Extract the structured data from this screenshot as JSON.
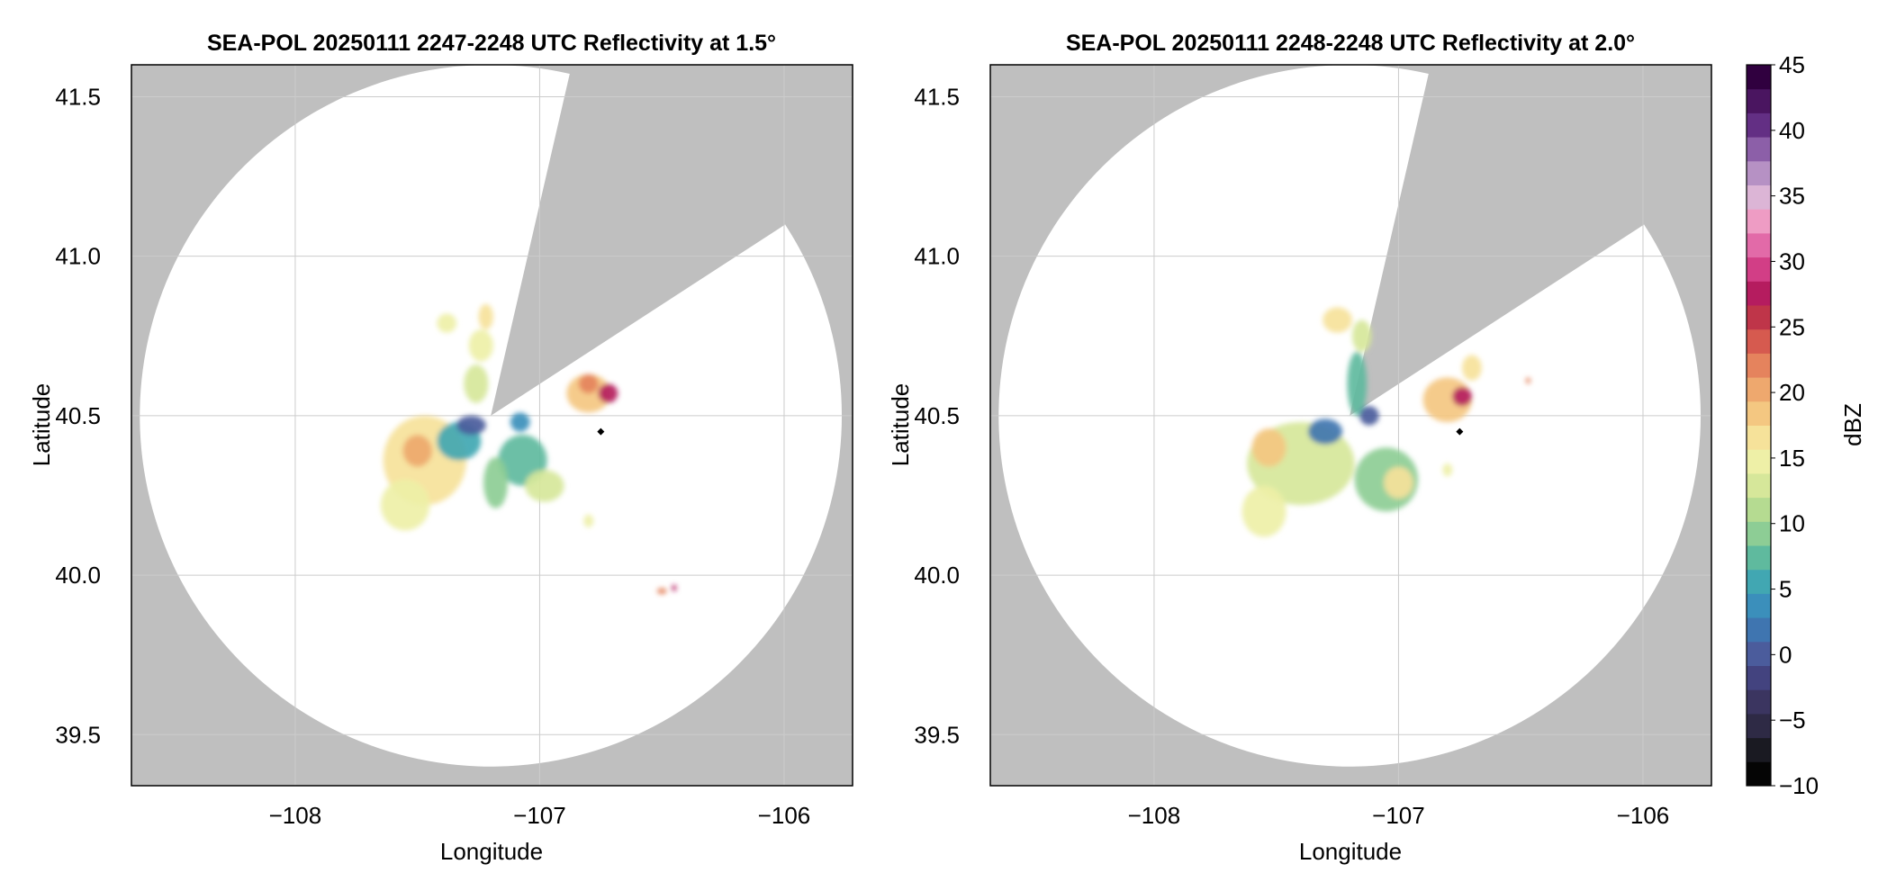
{
  "chart_data": [
    {
      "type": "heatmap",
      "title": "SEA-POL 20250111 2247-2248 UTC Reflectivity at 1.5°",
      "xlabel": "Longitude",
      "ylabel": "Latitude",
      "xlim": [
        -108.67,
        -105.72
      ],
      "ylim": [
        39.34,
        41.6
      ],
      "xticks": [
        -108,
        -107,
        -106
      ],
      "xtick_labels": [
        "−108",
        "−107",
        "−106"
      ],
      "yticks": [
        39.5,
        40.0,
        40.5,
        41.0,
        41.5
      ],
      "ytick_labels": [
        "39.5",
        "40.0",
        "40.5",
        "41.0",
        "41.5"
      ],
      "grid": true,
      "radar_center": {
        "lon": -107.2,
        "lat": 40.5
      },
      "radar_range_deg_lat": 1.1,
      "blocked_sector_azimuth_deg": [
        13,
        57
      ],
      "marker": {
        "lon": -106.75,
        "lat": 40.45
      },
      "echoes": [
        {
          "lon": -107.47,
          "lat": 40.36,
          "r_lon": 0.17,
          "r_lat": 0.14,
          "dbz": 16
        },
        {
          "lon": -107.5,
          "lat": 40.39,
          "r_lon": 0.06,
          "r_lat": 0.05,
          "dbz": 20
        },
        {
          "lon": -107.55,
          "lat": 40.22,
          "r_lon": 0.1,
          "r_lat": 0.08,
          "dbz": 15
        },
        {
          "lon": -107.33,
          "lat": 40.42,
          "r_lon": 0.09,
          "r_lat": 0.06,
          "dbz": 6
        },
        {
          "lon": -107.28,
          "lat": 40.47,
          "r_lon": 0.06,
          "r_lat": 0.03,
          "dbz": 0
        },
        {
          "lon": -107.07,
          "lat": 40.36,
          "r_lon": 0.1,
          "r_lat": 0.08,
          "dbz": 8
        },
        {
          "lon": -106.98,
          "lat": 40.28,
          "r_lon": 0.08,
          "r_lat": 0.05,
          "dbz": 12
        },
        {
          "lon": -107.18,
          "lat": 40.29,
          "r_lon": 0.05,
          "r_lat": 0.08,
          "dbz": 10
        },
        {
          "lon": -107.26,
          "lat": 40.6,
          "r_lon": 0.05,
          "r_lat": 0.06,
          "dbz": 12
        },
        {
          "lon": -107.24,
          "lat": 40.72,
          "r_lon": 0.05,
          "r_lat": 0.05,
          "dbz": 14
        },
        {
          "lon": -107.22,
          "lat": 40.81,
          "r_lon": 0.03,
          "r_lat": 0.04,
          "dbz": 16
        },
        {
          "lon": -107.38,
          "lat": 40.79,
          "r_lon": 0.04,
          "r_lat": 0.03,
          "dbz": 14
        },
        {
          "lon": -106.8,
          "lat": 40.57,
          "r_lon": 0.09,
          "r_lat": 0.06,
          "dbz": 18
        },
        {
          "lon": -106.72,
          "lat": 40.57,
          "r_lon": 0.04,
          "r_lat": 0.03,
          "dbz": 27
        },
        {
          "lon": -106.8,
          "lat": 40.6,
          "r_lon": 0.04,
          "r_lat": 0.03,
          "dbz": 22
        },
        {
          "lon": -107.08,
          "lat": 40.48,
          "r_lon": 0.04,
          "r_lat": 0.03,
          "dbz": 4
        },
        {
          "lon": -106.8,
          "lat": 40.17,
          "r_lon": 0.02,
          "r_lat": 0.02,
          "dbz": 14
        },
        {
          "lon": -106.5,
          "lat": 39.95,
          "r_lon": 0.02,
          "r_lat": 0.01,
          "dbz": 22
        },
        {
          "lon": -106.45,
          "lat": 39.96,
          "r_lon": 0.01,
          "r_lat": 0.01,
          "dbz": 27
        }
      ]
    },
    {
      "type": "heatmap",
      "title": "SEA-POL 20250111 2248-2248 UTC Reflectivity at 2.0°",
      "xlabel": "Longitude",
      "ylabel": "Latitude",
      "xlim": [
        -108.67,
        -105.72
      ],
      "ylim": [
        39.34,
        41.6
      ],
      "xticks": [
        -108,
        -107,
        -106
      ],
      "xtick_labels": [
        "−108",
        "−107",
        "−106"
      ],
      "yticks": [
        39.5,
        40.0,
        40.5,
        41.0,
        41.5
      ],
      "ytick_labels": [
        "39.5",
        "40.0",
        "40.5",
        "41.0",
        "41.5"
      ],
      "grid": true,
      "radar_center": {
        "lon": -107.2,
        "lat": 40.5
      },
      "radar_range_deg_lat": 1.1,
      "blocked_sector_azimuth_deg": [
        13,
        57
      ],
      "marker": {
        "lon": -106.75,
        "lat": 40.45
      },
      "echoes": [
        {
          "lon": -107.4,
          "lat": 40.35,
          "r_lon": 0.22,
          "r_lat": 0.13,
          "dbz": 12
        },
        {
          "lon": -107.53,
          "lat": 40.4,
          "r_lon": 0.07,
          "r_lat": 0.06,
          "dbz": 19
        },
        {
          "lon": -107.55,
          "lat": 40.2,
          "r_lon": 0.09,
          "r_lat": 0.08,
          "dbz": 15
        },
        {
          "lon": -107.3,
          "lat": 40.45,
          "r_lon": 0.07,
          "r_lat": 0.04,
          "dbz": 2
        },
        {
          "lon": -107.05,
          "lat": 40.3,
          "r_lon": 0.13,
          "r_lat": 0.1,
          "dbz": 9
        },
        {
          "lon": -107.0,
          "lat": 40.29,
          "r_lon": 0.06,
          "r_lat": 0.05,
          "dbz": 16
        },
        {
          "lon": -107.17,
          "lat": 40.6,
          "r_lon": 0.04,
          "r_lat": 0.1,
          "dbz": 8
        },
        {
          "lon": -107.15,
          "lat": 40.75,
          "r_lon": 0.04,
          "r_lat": 0.05,
          "dbz": 12
        },
        {
          "lon": -107.25,
          "lat": 40.8,
          "r_lon": 0.06,
          "r_lat": 0.04,
          "dbz": 16
        },
        {
          "lon": -107.12,
          "lat": 40.5,
          "r_lon": 0.04,
          "r_lat": 0.03,
          "dbz": 0
        },
        {
          "lon": -106.8,
          "lat": 40.55,
          "r_lon": 0.1,
          "r_lat": 0.07,
          "dbz": 18
        },
        {
          "lon": -106.74,
          "lat": 40.56,
          "r_lon": 0.04,
          "r_lat": 0.03,
          "dbz": 27
        },
        {
          "lon": -106.7,
          "lat": 40.65,
          "r_lon": 0.04,
          "r_lat": 0.04,
          "dbz": 16
        },
        {
          "lon": -106.8,
          "lat": 40.33,
          "r_lon": 0.02,
          "r_lat": 0.02,
          "dbz": 14
        },
        {
          "lon": -106.47,
          "lat": 40.61,
          "r_lon": 0.01,
          "r_lat": 0.01,
          "dbz": 22
        }
      ]
    }
  ],
  "colorbar": {
    "label": "dBZ",
    "min": -10,
    "max": 45,
    "step": 2.5,
    "ticks": [
      45,
      40,
      35,
      30,
      25,
      20,
      15,
      10,
      5,
      0,
      -5,
      -10
    ],
    "tick_labels": [
      "45",
      "40",
      "35",
      "30",
      "25",
      "20",
      "15",
      "10",
      "5",
      "0",
      "−5",
      "−10"
    ],
    "colors": [
      "#050505",
      "#1a1a22",
      "#2e2a45",
      "#3b3560",
      "#43437f",
      "#4b5c9c",
      "#3f75b0",
      "#3b8fbb",
      "#41a7b2",
      "#5fba9e",
      "#8dcd95",
      "#b5db91",
      "#d6e79a",
      "#eef0a7",
      "#f6e29a",
      "#f4c781",
      "#eea86e",
      "#e5835d",
      "#d65a4f",
      "#bf3549",
      "#b51c5f",
      "#d23e86",
      "#e26aa8",
      "#ee9cc4",
      "#dcb5d6",
      "#b691c4",
      "#8c5fa8",
      "#632f84",
      "#4a1560",
      "#30003f"
    ]
  },
  "colors": {
    "no_coverage": "#bfbfbf",
    "in_range": "#ffffff",
    "grid": "#cccccc",
    "frame": "#000000"
  }
}
